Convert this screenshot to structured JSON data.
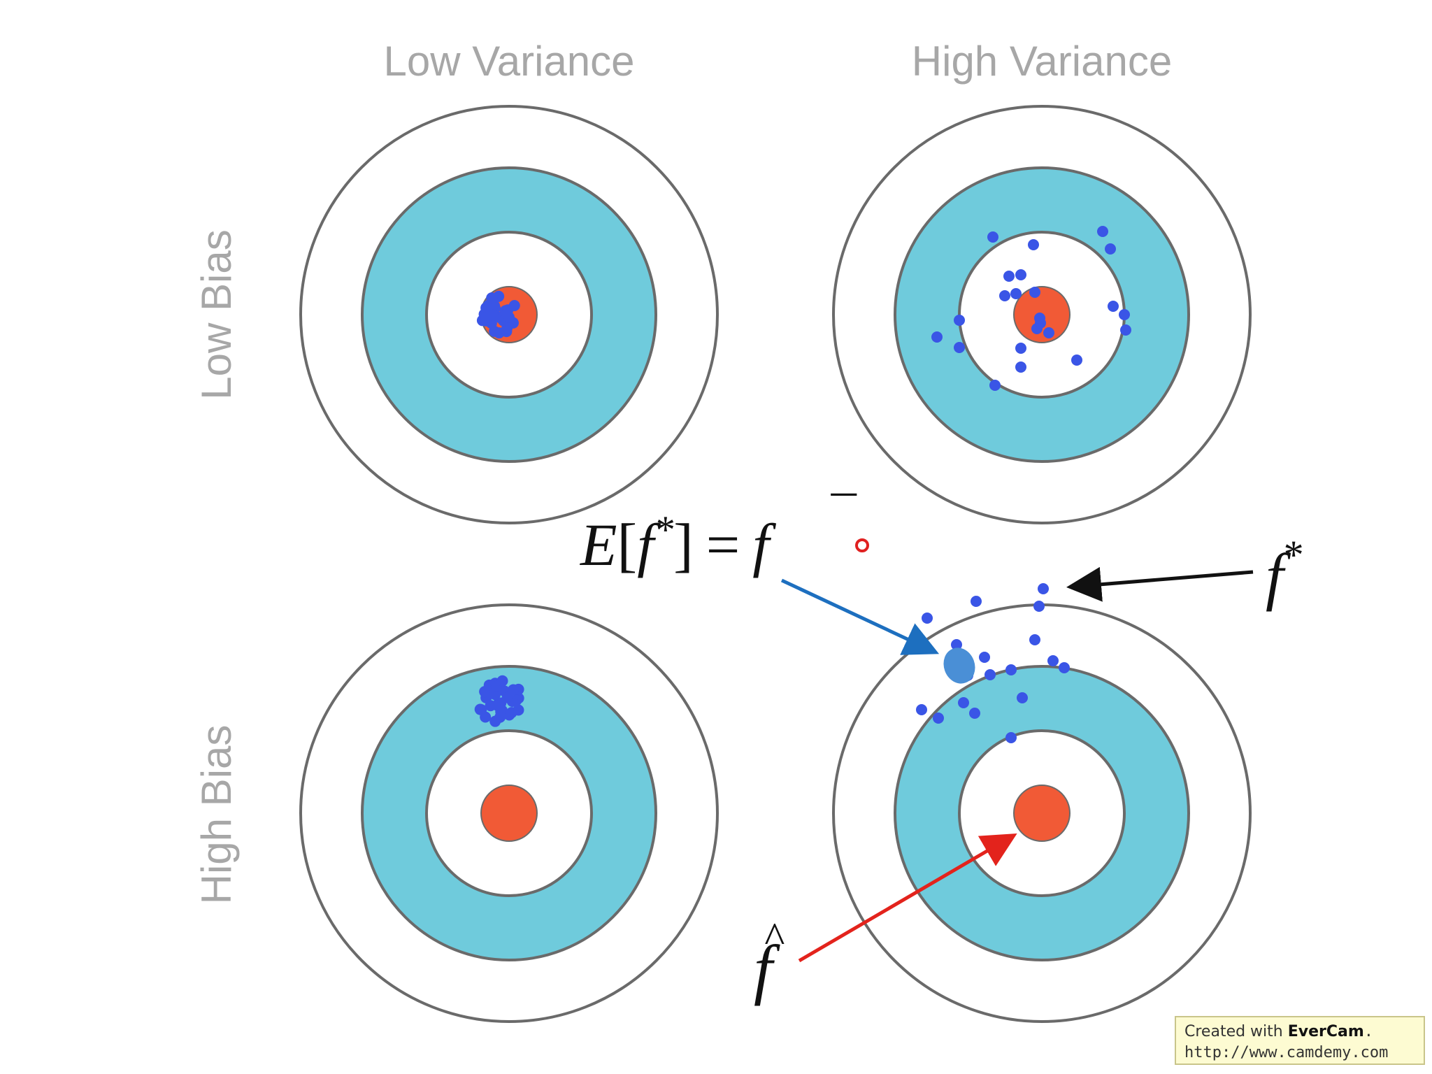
{
  "columns": [
    "Low Variance",
    "High Variance"
  ],
  "rows": [
    "Low Bias",
    "High Bias"
  ],
  "equation": {
    "E": "E",
    "open": "[",
    "f": "f",
    "star": "*",
    "close": "]",
    "eq": "=",
    "fbar": "f",
    "bar": "¯"
  },
  "f_star": {
    "f": "f",
    "star": "*"
  },
  "f_hat": {
    "f": "f",
    "hat": "^"
  },
  "colors": {
    "ring": "#6a6a6a",
    "band": "#6fcbdc",
    "bullseye": "#f15a36",
    "dot": "#3a55e6",
    "mean": "#4a8fd6",
    "blue_arrow": "#1d6fbf",
    "red_arrow": "#e3231c",
    "black_arrow": "#111111"
  },
  "watermark": {
    "prefix": "Created with ",
    "brand": "EverCam",
    "suffix": ".",
    "url": "http://www.camdemy.com"
  }
}
